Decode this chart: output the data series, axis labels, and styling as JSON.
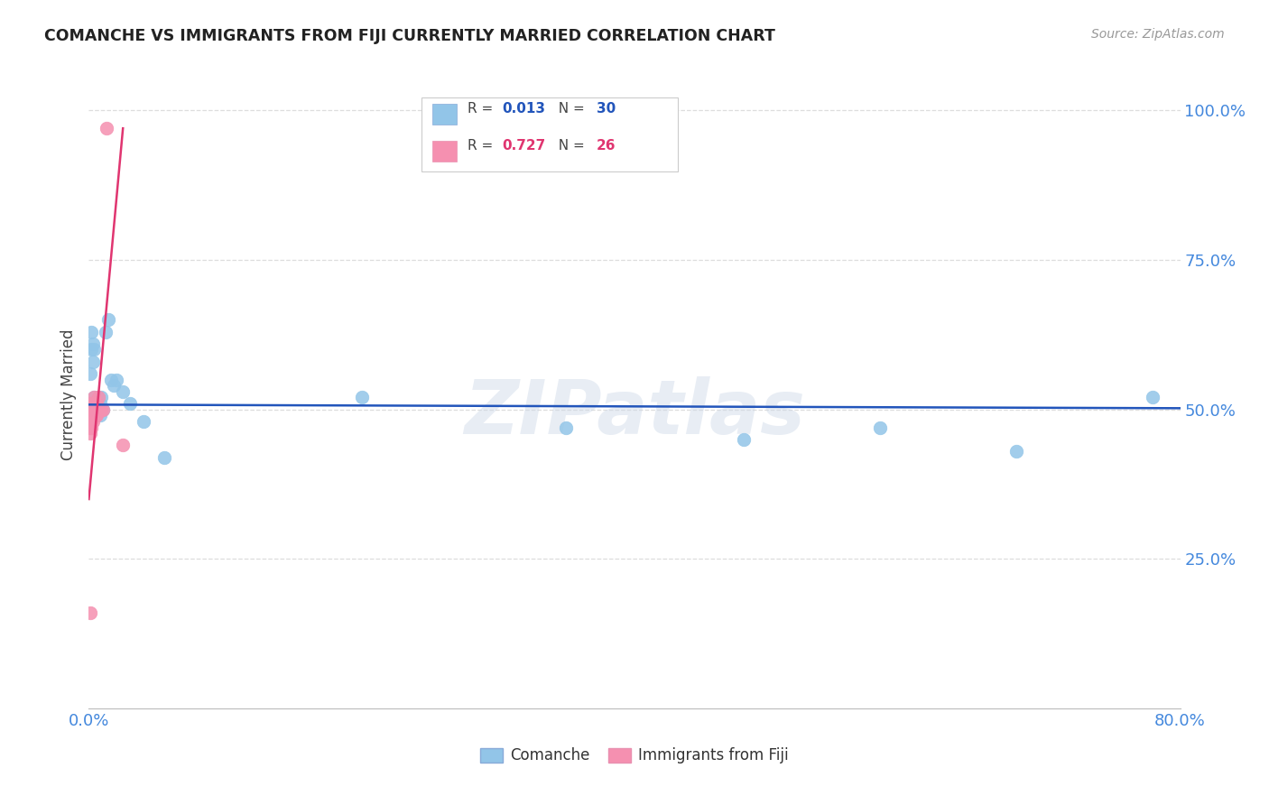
{
  "title": "COMANCHE VS IMMIGRANTS FROM FIJI CURRENTLY MARRIED CORRELATION CHART",
  "source": "Source: ZipAtlas.com",
  "ylabel": "Currently Married",
  "legend_label1": "Comanche",
  "legend_label2": "Immigrants from Fiji",
  "R_blue_str": "0.013",
  "N_blue_str": "30",
  "R_pink_str": "0.727",
  "N_pink_str": "26",
  "blue_color": "#92c5e8",
  "pink_color": "#f590b0",
  "trend_blue_color": "#2255bb",
  "trend_pink_color": "#e03570",
  "grid_color": "#dddddd",
  "background_color": "#ffffff",
  "watermark": "ZIPatlas",
  "tick_color": "#4488dd",
  "xlim": [
    0.0,
    0.8
  ],
  "ylim": [
    0.0,
    1.05
  ],
  "ytick_positions": [
    0.25,
    0.5,
    0.75,
    1.0
  ],
  "ytick_labels": [
    "25.0%",
    "50.0%",
    "75.0%",
    "100.0%"
  ],
  "xtick_show_positions": [
    0.0,
    0.8
  ],
  "xtick_show_labels": [
    "0.0%",
    "80.0%"
  ],
  "blue_x": [
    0.001,
    0.002,
    0.002,
    0.003,
    0.003,
    0.004,
    0.004,
    0.005,
    0.006,
    0.007,
    0.008,
    0.009,
    0.01,
    0.012,
    0.014,
    0.016,
    0.018,
    0.02,
    0.025,
    0.03,
    0.04,
    0.055,
    0.2,
    0.35,
    0.48,
    0.58,
    0.68,
    0.78,
    0.001,
    0.008
  ],
  "blue_y": [
    0.56,
    0.6,
    0.63,
    0.58,
    0.61,
    0.52,
    0.6,
    0.51,
    0.51,
    0.52,
    0.51,
    0.52,
    0.5,
    0.63,
    0.65,
    0.55,
    0.54,
    0.55,
    0.53,
    0.51,
    0.48,
    0.42,
    0.52,
    0.47,
    0.45,
    0.47,
    0.43,
    0.52,
    0.5,
    0.49
  ],
  "pink_x": [
    0.001,
    0.001,
    0.001,
    0.001,
    0.001,
    0.002,
    0.002,
    0.002,
    0.002,
    0.003,
    0.003,
    0.003,
    0.004,
    0.004,
    0.005,
    0.005,
    0.006,
    0.006,
    0.007,
    0.007,
    0.008,
    0.009,
    0.01,
    0.013,
    0.025,
    0.001
  ],
  "pink_y": [
    0.51,
    0.5,
    0.48,
    0.47,
    0.46,
    0.5,
    0.49,
    0.48,
    0.47,
    0.51,
    0.5,
    0.48,
    0.52,
    0.5,
    0.51,
    0.49,
    0.51,
    0.49,
    0.52,
    0.5,
    0.5,
    0.5,
    0.5,
    0.97,
    0.44,
    0.16
  ],
  "pink_trend_x": [
    0.0,
    0.025
  ],
  "pink_trend_y": [
    0.35,
    0.97
  ],
  "blue_trend_x": [
    0.0,
    0.8
  ],
  "blue_trend_y": [
    0.508,
    0.502
  ]
}
